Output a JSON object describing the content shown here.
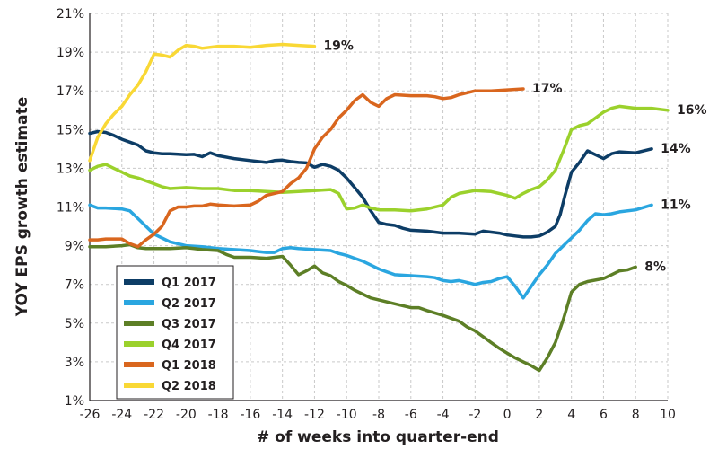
{
  "chart_data": {
    "type": "line",
    "title": "",
    "xlabel": "# of weeks into quarter-end",
    "ylabel": "YOY EPS growth estimate",
    "xlim": [
      -26,
      10
    ],
    "ylim": [
      1,
      21
    ],
    "xticks": [
      -26,
      -24,
      -22,
      -20,
      -18,
      -16,
      -14,
      -12,
      -10,
      -8,
      -6,
      -4,
      -2,
      0,
      2,
      4,
      6,
      8,
      10
    ],
    "yticks": [
      1,
      3,
      5,
      7,
      9,
      11,
      13,
      15,
      17,
      19,
      21
    ],
    "ytick_labels": [
      "1%",
      "3%",
      "5%",
      "7%",
      "9%",
      "11%",
      "13%",
      "15%",
      "17%",
      "19%",
      "21%"
    ],
    "grid": true,
    "legend_position": "bottom-left",
    "series": [
      {
        "name": "Q1 2017",
        "color": "#0d3d66",
        "end_label": "14%",
        "points": [
          [
            -26,
            14.8
          ],
          [
            -25.5,
            14.9
          ],
          [
            -25,
            14.85
          ],
          [
            -24.5,
            14.7
          ],
          [
            -24,
            14.5
          ],
          [
            -23.5,
            14.35
          ],
          [
            -23,
            14.2
          ],
          [
            -22.5,
            13.9
          ],
          [
            -22,
            13.8
          ],
          [
            -21.5,
            13.75
          ],
          [
            -21,
            13.75
          ],
          [
            -20,
            13.7
          ],
          [
            -19.5,
            13.72
          ],
          [
            -19,
            13.6
          ],
          [
            -18.5,
            13.8
          ],
          [
            -18,
            13.65
          ],
          [
            -17,
            13.5
          ],
          [
            -16,
            13.4
          ],
          [
            -15,
            13.3
          ],
          [
            -14.5,
            13.4
          ],
          [
            -14,
            13.42
          ],
          [
            -13.5,
            13.35
          ],
          [
            -13,
            13.3
          ],
          [
            -12.5,
            13.28
          ],
          [
            -12,
            13.05
          ],
          [
            -11.5,
            13.2
          ],
          [
            -11,
            13.1
          ],
          [
            -10.5,
            12.9
          ],
          [
            -10,
            12.5
          ],
          [
            -9.5,
            12.0
          ],
          [
            -9,
            11.5
          ],
          [
            -8.5,
            10.8
          ],
          [
            -8,
            10.2
          ],
          [
            -7.5,
            10.1
          ],
          [
            -7,
            10.05
          ],
          [
            -6.5,
            9.9
          ],
          [
            -6,
            9.8
          ],
          [
            -5,
            9.75
          ],
          [
            -4,
            9.65
          ],
          [
            -3,
            9.65
          ],
          [
            -2,
            9.6
          ],
          [
            -1.5,
            9.75
          ],
          [
            -1,
            9.7
          ],
          [
            -0.5,
            9.65
          ],
          [
            0,
            9.55
          ],
          [
            0.5,
            9.5
          ],
          [
            1,
            9.45
          ],
          [
            1.5,
            9.45
          ],
          [
            2,
            9.5
          ],
          [
            2.5,
            9.7
          ],
          [
            3,
            10.0
          ],
          [
            3.3,
            10.6
          ],
          [
            3.6,
            11.6
          ],
          [
            4,
            12.8
          ],
          [
            4.5,
            13.3
          ],
          [
            5,
            13.9
          ],
          [
            5.5,
            13.7
          ],
          [
            6,
            13.5
          ],
          [
            6.5,
            13.75
          ],
          [
            7,
            13.85
          ],
          [
            8,
            13.8
          ],
          [
            9,
            14.0
          ]
        ]
      },
      {
        "name": "Q2 2017",
        "color": "#2aa6e0",
        "end_label": "11%",
        "points": [
          [
            -26,
            11.1
          ],
          [
            -25.5,
            10.95
          ],
          [
            -25,
            10.95
          ],
          [
            -24,
            10.9
          ],
          [
            -23.5,
            10.8
          ],
          [
            -23,
            10.4
          ],
          [
            -22.5,
            10.0
          ],
          [
            -22,
            9.6
          ],
          [
            -21.5,
            9.4
          ],
          [
            -21,
            9.2
          ],
          [
            -20.5,
            9.1
          ],
          [
            -20,
            9.0
          ],
          [
            -19,
            8.95
          ],
          [
            -18,
            8.85
          ],
          [
            -17,
            8.8
          ],
          [
            -16,
            8.75
          ],
          [
            -15.5,
            8.7
          ],
          [
            -15,
            8.65
          ],
          [
            -14.5,
            8.65
          ],
          [
            -14,
            8.85
          ],
          [
            -13.5,
            8.9
          ],
          [
            -13,
            8.85
          ],
          [
            -12,
            8.8
          ],
          [
            -11,
            8.75
          ],
          [
            -10.5,
            8.6
          ],
          [
            -10,
            8.5
          ],
          [
            -9.5,
            8.35
          ],
          [
            -9,
            8.2
          ],
          [
            -8.5,
            8.0
          ],
          [
            -8,
            7.8
          ],
          [
            -7.5,
            7.65
          ],
          [
            -7,
            7.5
          ],
          [
            -6,
            7.45
          ],
          [
            -5,
            7.4
          ],
          [
            -4.5,
            7.35
          ],
          [
            -4,
            7.2
          ],
          [
            -3.5,
            7.15
          ],
          [
            -3,
            7.2
          ],
          [
            -2.5,
            7.1
          ],
          [
            -2,
            7.0
          ],
          [
            -1.5,
            7.1
          ],
          [
            -1,
            7.15
          ],
          [
            -0.5,
            7.3
          ],
          [
            0,
            7.4
          ],
          [
            0.5,
            6.9
          ],
          [
            1,
            6.3
          ],
          [
            1.5,
            6.9
          ],
          [
            2,
            7.5
          ],
          [
            2.5,
            8.0
          ],
          [
            3,
            8.6
          ],
          [
            3.5,
            9.0
          ],
          [
            4,
            9.4
          ],
          [
            4.5,
            9.8
          ],
          [
            5,
            10.3
          ],
          [
            5.5,
            10.65
          ],
          [
            6,
            10.6
          ],
          [
            6.5,
            10.65
          ],
          [
            7,
            10.75
          ],
          [
            8,
            10.85
          ],
          [
            9,
            11.1
          ]
        ]
      },
      {
        "name": "Q3 2017",
        "color": "#5d7f26",
        "end_label": "8%",
        "points": [
          [
            -26,
            8.95
          ],
          [
            -25,
            8.95
          ],
          [
            -24,
            9.0
          ],
          [
            -23.5,
            9.05
          ],
          [
            -23,
            8.9
          ],
          [
            -22.5,
            8.85
          ],
          [
            -22,
            8.85
          ],
          [
            -21,
            8.85
          ],
          [
            -20,
            8.9
          ],
          [
            -19.5,
            8.85
          ],
          [
            -19,
            8.8
          ],
          [
            -18,
            8.75
          ],
          [
            -17.5,
            8.55
          ],
          [
            -17,
            8.4
          ],
          [
            -16,
            8.4
          ],
          [
            -15,
            8.35
          ],
          [
            -14,
            8.45
          ],
          [
            -13.5,
            8.0
          ],
          [
            -13,
            7.5
          ],
          [
            -12.5,
            7.7
          ],
          [
            -12,
            7.95
          ],
          [
            -11.5,
            7.6
          ],
          [
            -11,
            7.45
          ],
          [
            -10.5,
            7.15
          ],
          [
            -10,
            6.95
          ],
          [
            -9.5,
            6.7
          ],
          [
            -9,
            6.5
          ],
          [
            -8.5,
            6.3
          ],
          [
            -8,
            6.2
          ],
          [
            -7,
            6.0
          ],
          [
            -6,
            5.8
          ],
          [
            -5.5,
            5.8
          ],
          [
            -5,
            5.65
          ],
          [
            -4,
            5.4
          ],
          [
            -3,
            5.1
          ],
          [
            -2.5,
            4.8
          ],
          [
            -2,
            4.6
          ],
          [
            -1.5,
            4.3
          ],
          [
            -1,
            4.0
          ],
          [
            -0.5,
            3.7
          ],
          [
            0,
            3.45
          ],
          [
            0.5,
            3.2
          ],
          [
            1,
            3.0
          ],
          [
            1.5,
            2.8
          ],
          [
            2,
            2.55
          ],
          [
            2.5,
            3.2
          ],
          [
            3,
            4.0
          ],
          [
            3.5,
            5.2
          ],
          [
            4,
            6.6
          ],
          [
            4.5,
            7.0
          ],
          [
            5,
            7.15
          ],
          [
            6,
            7.3
          ],
          [
            6.5,
            7.5
          ],
          [
            7,
            7.7
          ],
          [
            7.5,
            7.75
          ],
          [
            8,
            7.9
          ]
        ]
      },
      {
        "name": "Q4 2017",
        "color": "#9bd12c",
        "end_label": "16%",
        "points": [
          [
            -26,
            12.9
          ],
          [
            -25.5,
            13.1
          ],
          [
            -25,
            13.2
          ],
          [
            -24.5,
            13.0
          ],
          [
            -24,
            12.8
          ],
          [
            -23.5,
            12.6
          ],
          [
            -23,
            12.5
          ],
          [
            -22.5,
            12.35
          ],
          [
            -22,
            12.2
          ],
          [
            -21.5,
            12.05
          ],
          [
            -21,
            11.95
          ],
          [
            -20,
            12.0
          ],
          [
            -19,
            11.95
          ],
          [
            -18,
            11.95
          ],
          [
            -17,
            11.85
          ],
          [
            -16,
            11.85
          ],
          [
            -15,
            11.8
          ],
          [
            -14,
            11.75
          ],
          [
            -13,
            11.8
          ],
          [
            -12,
            11.85
          ],
          [
            -11,
            11.9
          ],
          [
            -10.5,
            11.7
          ],
          [
            -10,
            10.9
          ],
          [
            -9.5,
            10.95
          ],
          [
            -9,
            11.1
          ],
          [
            -8.5,
            10.95
          ],
          [
            -8,
            10.85
          ],
          [
            -7,
            10.85
          ],
          [
            -6,
            10.8
          ],
          [
            -5,
            10.9
          ],
          [
            -4,
            11.1
          ],
          [
            -3.5,
            11.5
          ],
          [
            -3,
            11.7
          ],
          [
            -2,
            11.85
          ],
          [
            -1,
            11.8
          ],
          [
            0,
            11.6
          ],
          [
            0.5,
            11.45
          ],
          [
            1,
            11.7
          ],
          [
            1.5,
            11.9
          ],
          [
            2,
            12.05
          ],
          [
            2.5,
            12.4
          ],
          [
            3,
            12.9
          ],
          [
            3.5,
            13.9
          ],
          [
            4,
            15.0
          ],
          [
            4.5,
            15.2
          ],
          [
            5,
            15.3
          ],
          [
            5.5,
            15.6
          ],
          [
            6,
            15.9
          ],
          [
            6.5,
            16.1
          ],
          [
            7,
            16.2
          ],
          [
            8,
            16.1
          ],
          [
            9,
            16.1
          ],
          [
            10,
            16.0
          ]
        ]
      },
      {
        "name": "Q1 2018",
        "color": "#d9661e",
        "end_label": "17%",
        "points": [
          [
            -26,
            9.3
          ],
          [
            -25.5,
            9.3
          ],
          [
            -25,
            9.35
          ],
          [
            -24,
            9.35
          ],
          [
            -23.5,
            9.1
          ],
          [
            -23,
            8.95
          ],
          [
            -22.5,
            9.3
          ],
          [
            -22,
            9.6
          ],
          [
            -21.5,
            10.0
          ],
          [
            -21,
            10.8
          ],
          [
            -20.5,
            11.0
          ],
          [
            -20,
            11.0
          ],
          [
            -19.5,
            11.05
          ],
          [
            -19,
            11.05
          ],
          [
            -18.5,
            11.15
          ],
          [
            -18,
            11.1
          ],
          [
            -17,
            11.05
          ],
          [
            -16,
            11.1
          ],
          [
            -15.5,
            11.3
          ],
          [
            -15,
            11.6
          ],
          [
            -14.5,
            11.7
          ],
          [
            -14,
            11.8
          ],
          [
            -13.5,
            12.2
          ],
          [
            -13,
            12.5
          ],
          [
            -12.5,
            13.0
          ],
          [
            -12,
            14.0
          ],
          [
            -11.5,
            14.6
          ],
          [
            -11,
            15.0
          ],
          [
            -10.5,
            15.6
          ],
          [
            -10,
            16.0
          ],
          [
            -9.5,
            16.5
          ],
          [
            -9,
            16.8
          ],
          [
            -8.5,
            16.4
          ],
          [
            -8,
            16.2
          ],
          [
            -7.5,
            16.6
          ],
          [
            -7,
            16.8
          ],
          [
            -6,
            16.75
          ],
          [
            -5,
            16.75
          ],
          [
            -4.5,
            16.7
          ],
          [
            -4,
            16.6
          ],
          [
            -3.5,
            16.65
          ],
          [
            -3,
            16.8
          ],
          [
            -2,
            17.0
          ],
          [
            -1,
            17.0
          ],
          [
            0,
            17.05
          ],
          [
            1,
            17.1
          ]
        ]
      },
      {
        "name": "Q2 2018",
        "color": "#f9d835",
        "end_label": "19%",
        "points": [
          [
            -26,
            13.4
          ],
          [
            -25.5,
            14.6
          ],
          [
            -25,
            15.3
          ],
          [
            -24.5,
            15.8
          ],
          [
            -24,
            16.2
          ],
          [
            -23.5,
            16.8
          ],
          [
            -23,
            17.3
          ],
          [
            -22.5,
            18.0
          ],
          [
            -22,
            18.9
          ],
          [
            -21.5,
            18.85
          ],
          [
            -21,
            18.75
          ],
          [
            -20.5,
            19.1
          ],
          [
            -20,
            19.35
          ],
          [
            -19.5,
            19.3
          ],
          [
            -19,
            19.2
          ],
          [
            -18,
            19.3
          ],
          [
            -17,
            19.3
          ],
          [
            -16,
            19.25
          ],
          [
            -15,
            19.35
          ],
          [
            -14,
            19.4
          ],
          [
            -13,
            19.35
          ],
          [
            -12,
            19.3
          ]
        ]
      }
    ]
  }
}
